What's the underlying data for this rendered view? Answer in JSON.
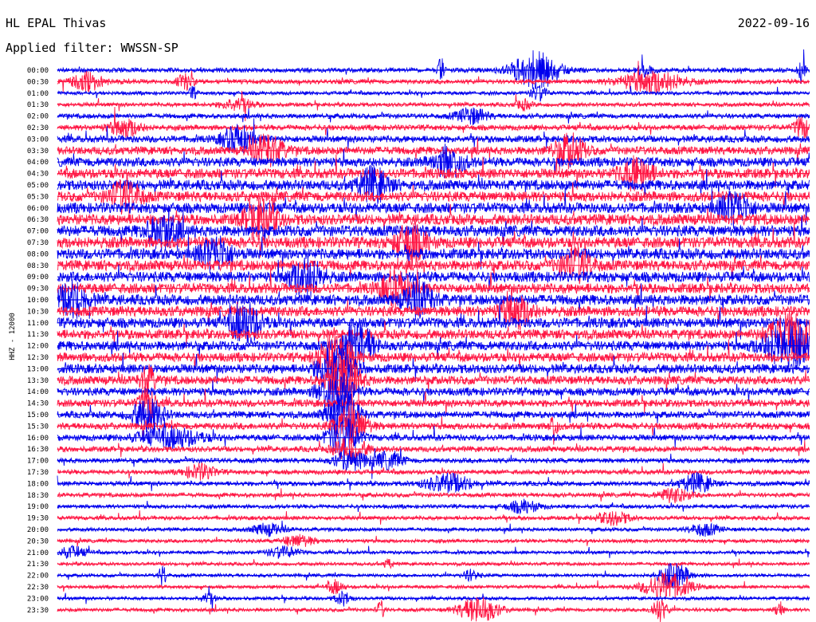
{
  "header": {
    "station": "HL EPAL Thivas",
    "date": "2022-09-16",
    "filter_prefix": "Applied filter:",
    "filter_name": "WWSSN-SP",
    "channel_label": "HHZ - 12000"
  },
  "colors": {
    "trace_even": "#0000ee",
    "trace_odd": "#ff1744",
    "background": "#ffffff",
    "text": "#000000"
  },
  "chart_data": {
    "type": "line",
    "title": "HL EPAL Thivas",
    "subtitle": "Applied filter: WWSSN-SP",
    "date": "2022-09-16",
    "ylabel": "HHZ - 12000",
    "xlabel": "",
    "row_minutes": 30,
    "rows": [
      {
        "time": "00:00",
        "level": 1.5,
        "events": [
          {
            "t": 0.635,
            "a": 5.0,
            "w": 0.03
          },
          {
            "t": 0.51,
            "a": 3.5,
            "w": 0.004
          },
          {
            "t": 0.78,
            "a": 1.5,
            "w": 0.01
          },
          {
            "t": 0.99,
            "a": 3.0,
            "w": 0.005
          }
        ]
      },
      {
        "time": "00:30",
        "level": 1.5,
        "events": [
          {
            "t": 0.04,
            "a": 2.5,
            "w": 0.02
          },
          {
            "t": 0.17,
            "a": 2.0,
            "w": 0.01
          },
          {
            "t": 0.79,
            "a": 3.0,
            "w": 0.04
          }
        ]
      },
      {
        "time": "01:00",
        "level": 1.2,
        "events": [
          {
            "t": 0.18,
            "a": 2.0,
            "w": 0.005
          },
          {
            "t": 0.64,
            "a": 2.5,
            "w": 0.01
          }
        ]
      },
      {
        "time": "01:30",
        "level": 1.3,
        "events": [
          {
            "t": 0.24,
            "a": 2.0,
            "w": 0.02
          },
          {
            "t": 0.62,
            "a": 1.5,
            "w": 0.01
          }
        ]
      },
      {
        "time": "02:00",
        "level": 1.6,
        "events": [
          {
            "t": 0.55,
            "a": 2.0,
            "w": 0.02
          }
        ]
      },
      {
        "time": "02:30",
        "level": 1.8,
        "events": [
          {
            "t": 0.09,
            "a": 2.0,
            "w": 0.02
          },
          {
            "t": 0.99,
            "a": 2.5,
            "w": 0.01
          }
        ]
      },
      {
        "time": "03:00",
        "level": 2.2,
        "events": [
          {
            "t": 0.24,
            "a": 2.5,
            "w": 0.02
          }
        ]
      },
      {
        "time": "03:30",
        "level": 2.6,
        "events": [
          {
            "t": 0.28,
            "a": 2.5,
            "w": 0.02
          },
          {
            "t": 0.68,
            "a": 2.5,
            "w": 0.02
          }
        ]
      },
      {
        "time": "04:00",
        "level": 3.0,
        "events": [
          {
            "t": 0.52,
            "a": 2.0,
            "w": 0.02
          }
        ]
      },
      {
        "time": "04:30",
        "level": 3.2,
        "events": [
          {
            "t": 0.77,
            "a": 2.0,
            "w": 0.02
          }
        ]
      },
      {
        "time": "05:00",
        "level": 3.3,
        "events": [
          {
            "t": 0.42,
            "a": 2.0,
            "w": 0.02
          }
        ]
      },
      {
        "time": "05:30",
        "level": 3.3,
        "events": [
          {
            "t": 0.09,
            "a": 2.0,
            "w": 0.02
          }
        ]
      },
      {
        "time": "06:00",
        "level": 3.4,
        "events": [
          {
            "t": 0.9,
            "a": 2.0,
            "w": 0.02
          }
        ]
      },
      {
        "time": "06:30",
        "level": 3.5,
        "events": [
          {
            "t": 0.27,
            "a": 2.5,
            "w": 0.02
          }
        ]
      },
      {
        "time": "07:00",
        "level": 3.6,
        "events": [
          {
            "t": 0.14,
            "a": 2.0,
            "w": 0.02
          }
        ]
      },
      {
        "time": "07:30",
        "level": 3.6,
        "events": [
          {
            "t": 0.47,
            "a": 2.0,
            "w": 0.02
          }
        ]
      },
      {
        "time": "08:00",
        "level": 3.5,
        "events": [
          {
            "t": 0.21,
            "a": 2.0,
            "w": 0.02
          }
        ]
      },
      {
        "time": "08:30",
        "level": 3.4,
        "events": [
          {
            "t": 0.69,
            "a": 2.0,
            "w": 0.02
          }
        ]
      },
      {
        "time": "09:00",
        "level": 3.4,
        "events": [
          {
            "t": 0.33,
            "a": 2.5,
            "w": 0.02
          }
        ]
      },
      {
        "time": "09:30",
        "level": 3.3,
        "events": [
          {
            "t": 0.45,
            "a": 2.0,
            "w": 0.02
          }
        ]
      },
      {
        "time": "10:00",
        "level": 3.4,
        "events": [
          {
            "t": 0.02,
            "a": 2.0,
            "w": 0.02
          },
          {
            "t": 0.48,
            "a": 2.0,
            "w": 0.02
          }
        ]
      },
      {
        "time": "10:30",
        "level": 3.3,
        "events": [
          {
            "t": 0.61,
            "a": 2.0,
            "w": 0.02
          }
        ]
      },
      {
        "time": "11:00",
        "level": 3.3,
        "events": [
          {
            "t": 0.25,
            "a": 2.5,
            "w": 0.02
          }
        ]
      },
      {
        "time": "11:30",
        "level": 3.1,
        "events": [
          {
            "t": 0.98,
            "a": 3.0,
            "w": 0.03
          }
        ]
      },
      {
        "time": "12:00",
        "level": 3.1,
        "events": [
          {
            "t": 0.4,
            "a": 3.0,
            "w": 0.02
          },
          {
            "t": 0.97,
            "a": 3.0,
            "w": 0.03
          }
        ]
      },
      {
        "time": "12:30",
        "level": 3.0,
        "events": [
          {
            "t": 0.37,
            "a": 4.0,
            "w": 0.02
          }
        ]
      },
      {
        "time": "13:00",
        "level": 3.0,
        "events": [
          {
            "t": 0.37,
            "a": 4.0,
            "w": 0.02
          }
        ]
      },
      {
        "time": "13:30",
        "level": 2.8,
        "events": [
          {
            "t": 0.38,
            "a": 4.0,
            "w": 0.02
          },
          {
            "t": 0.12,
            "a": 2.0,
            "w": 0.01
          }
        ]
      },
      {
        "time": "14:00",
        "level": 2.6,
        "events": [
          {
            "t": 0.37,
            "a": 4.0,
            "w": 0.02
          }
        ]
      },
      {
        "time": "14:30",
        "level": 2.4,
        "events": [
          {
            "t": 0.12,
            "a": 3.0,
            "w": 0.01
          }
        ]
      },
      {
        "time": "15:00",
        "level": 2.2,
        "events": [
          {
            "t": 0.12,
            "a": 3.0,
            "w": 0.02
          },
          {
            "t": 0.38,
            "a": 4.0,
            "w": 0.02
          }
        ]
      },
      {
        "time": "15:30",
        "level": 2.2,
        "events": [
          {
            "t": 0.39,
            "a": 4.0,
            "w": 0.02
          },
          {
            "t": 0.66,
            "a": 3.0,
            "w": 0.005
          }
        ]
      },
      {
        "time": "16:00",
        "level": 2.0,
        "events": [
          {
            "t": 0.15,
            "a": 2.0,
            "w": 0.04
          },
          {
            "t": 0.38,
            "a": 4.0,
            "w": 0.02
          }
        ]
      },
      {
        "time": "16:30",
        "level": 1.8,
        "events": [
          {
            "t": 0.39,
            "a": 3.0,
            "w": 0.02
          }
        ]
      },
      {
        "time": "17:00",
        "level": 1.6,
        "events": [
          {
            "t": 0.39,
            "a": 2.5,
            "w": 0.02
          },
          {
            "t": 0.44,
            "a": 2.0,
            "w": 0.02
          }
        ]
      },
      {
        "time": "17:30",
        "level": 1.5,
        "events": [
          {
            "t": 0.19,
            "a": 2.0,
            "w": 0.02
          }
        ]
      },
      {
        "time": "18:00",
        "level": 1.5,
        "events": [
          {
            "t": 0.52,
            "a": 2.5,
            "w": 0.03
          },
          {
            "t": 0.85,
            "a": 2.5,
            "w": 0.02
          }
        ]
      },
      {
        "time": "18:30",
        "level": 1.4,
        "events": [
          {
            "t": 0.82,
            "a": 2.0,
            "w": 0.02
          }
        ]
      },
      {
        "time": "19:00",
        "level": 1.3,
        "events": [
          {
            "t": 0.62,
            "a": 2.0,
            "w": 0.02
          }
        ]
      },
      {
        "time": "19:30",
        "level": 1.3,
        "events": [
          {
            "t": 0.74,
            "a": 2.0,
            "w": 0.02
          }
        ]
      },
      {
        "time": "20:00",
        "level": 1.2,
        "events": [
          {
            "t": 0.28,
            "a": 2.0,
            "w": 0.02
          },
          {
            "t": 0.86,
            "a": 2.0,
            "w": 0.02
          }
        ]
      },
      {
        "time": "20:30",
        "level": 1.2,
        "events": [
          {
            "t": 0.32,
            "a": 2.0,
            "w": 0.02
          }
        ]
      },
      {
        "time": "21:00",
        "level": 1.1,
        "events": [
          {
            "t": 0.02,
            "a": 2.0,
            "w": 0.02
          },
          {
            "t": 0.3,
            "a": 2.0,
            "w": 0.02
          }
        ]
      },
      {
        "time": "21:30",
        "level": 1.1,
        "events": [
          {
            "t": 0.44,
            "a": 2.0,
            "w": 0.005
          }
        ]
      },
      {
        "time": "22:00",
        "level": 1.1,
        "events": [
          {
            "t": 0.14,
            "a": 4.0,
            "w": 0.005
          },
          {
            "t": 0.82,
            "a": 4.5,
            "w": 0.02
          },
          {
            "t": 0.55,
            "a": 2.0,
            "w": 0.01
          }
        ]
      },
      {
        "time": "22:30",
        "level": 1.1,
        "events": [
          {
            "t": 0.81,
            "a": 5.0,
            "w": 0.03
          },
          {
            "t": 0.37,
            "a": 2.5,
            "w": 0.01
          }
        ]
      },
      {
        "time": "23:00",
        "level": 1.1,
        "events": [
          {
            "t": 0.2,
            "a": 2.0,
            "w": 0.01
          },
          {
            "t": 0.38,
            "a": 2.5,
            "w": 0.01
          }
        ]
      },
      {
        "time": "23:30",
        "level": 1.2,
        "events": [
          {
            "t": 0.56,
            "a": 4.5,
            "w": 0.025
          },
          {
            "t": 0.8,
            "a": 4.0,
            "w": 0.01
          },
          {
            "t": 0.43,
            "a": 3.0,
            "w": 0.005
          },
          {
            "t": 0.96,
            "a": 3.0,
            "w": 0.005
          }
        ]
      }
    ]
  }
}
